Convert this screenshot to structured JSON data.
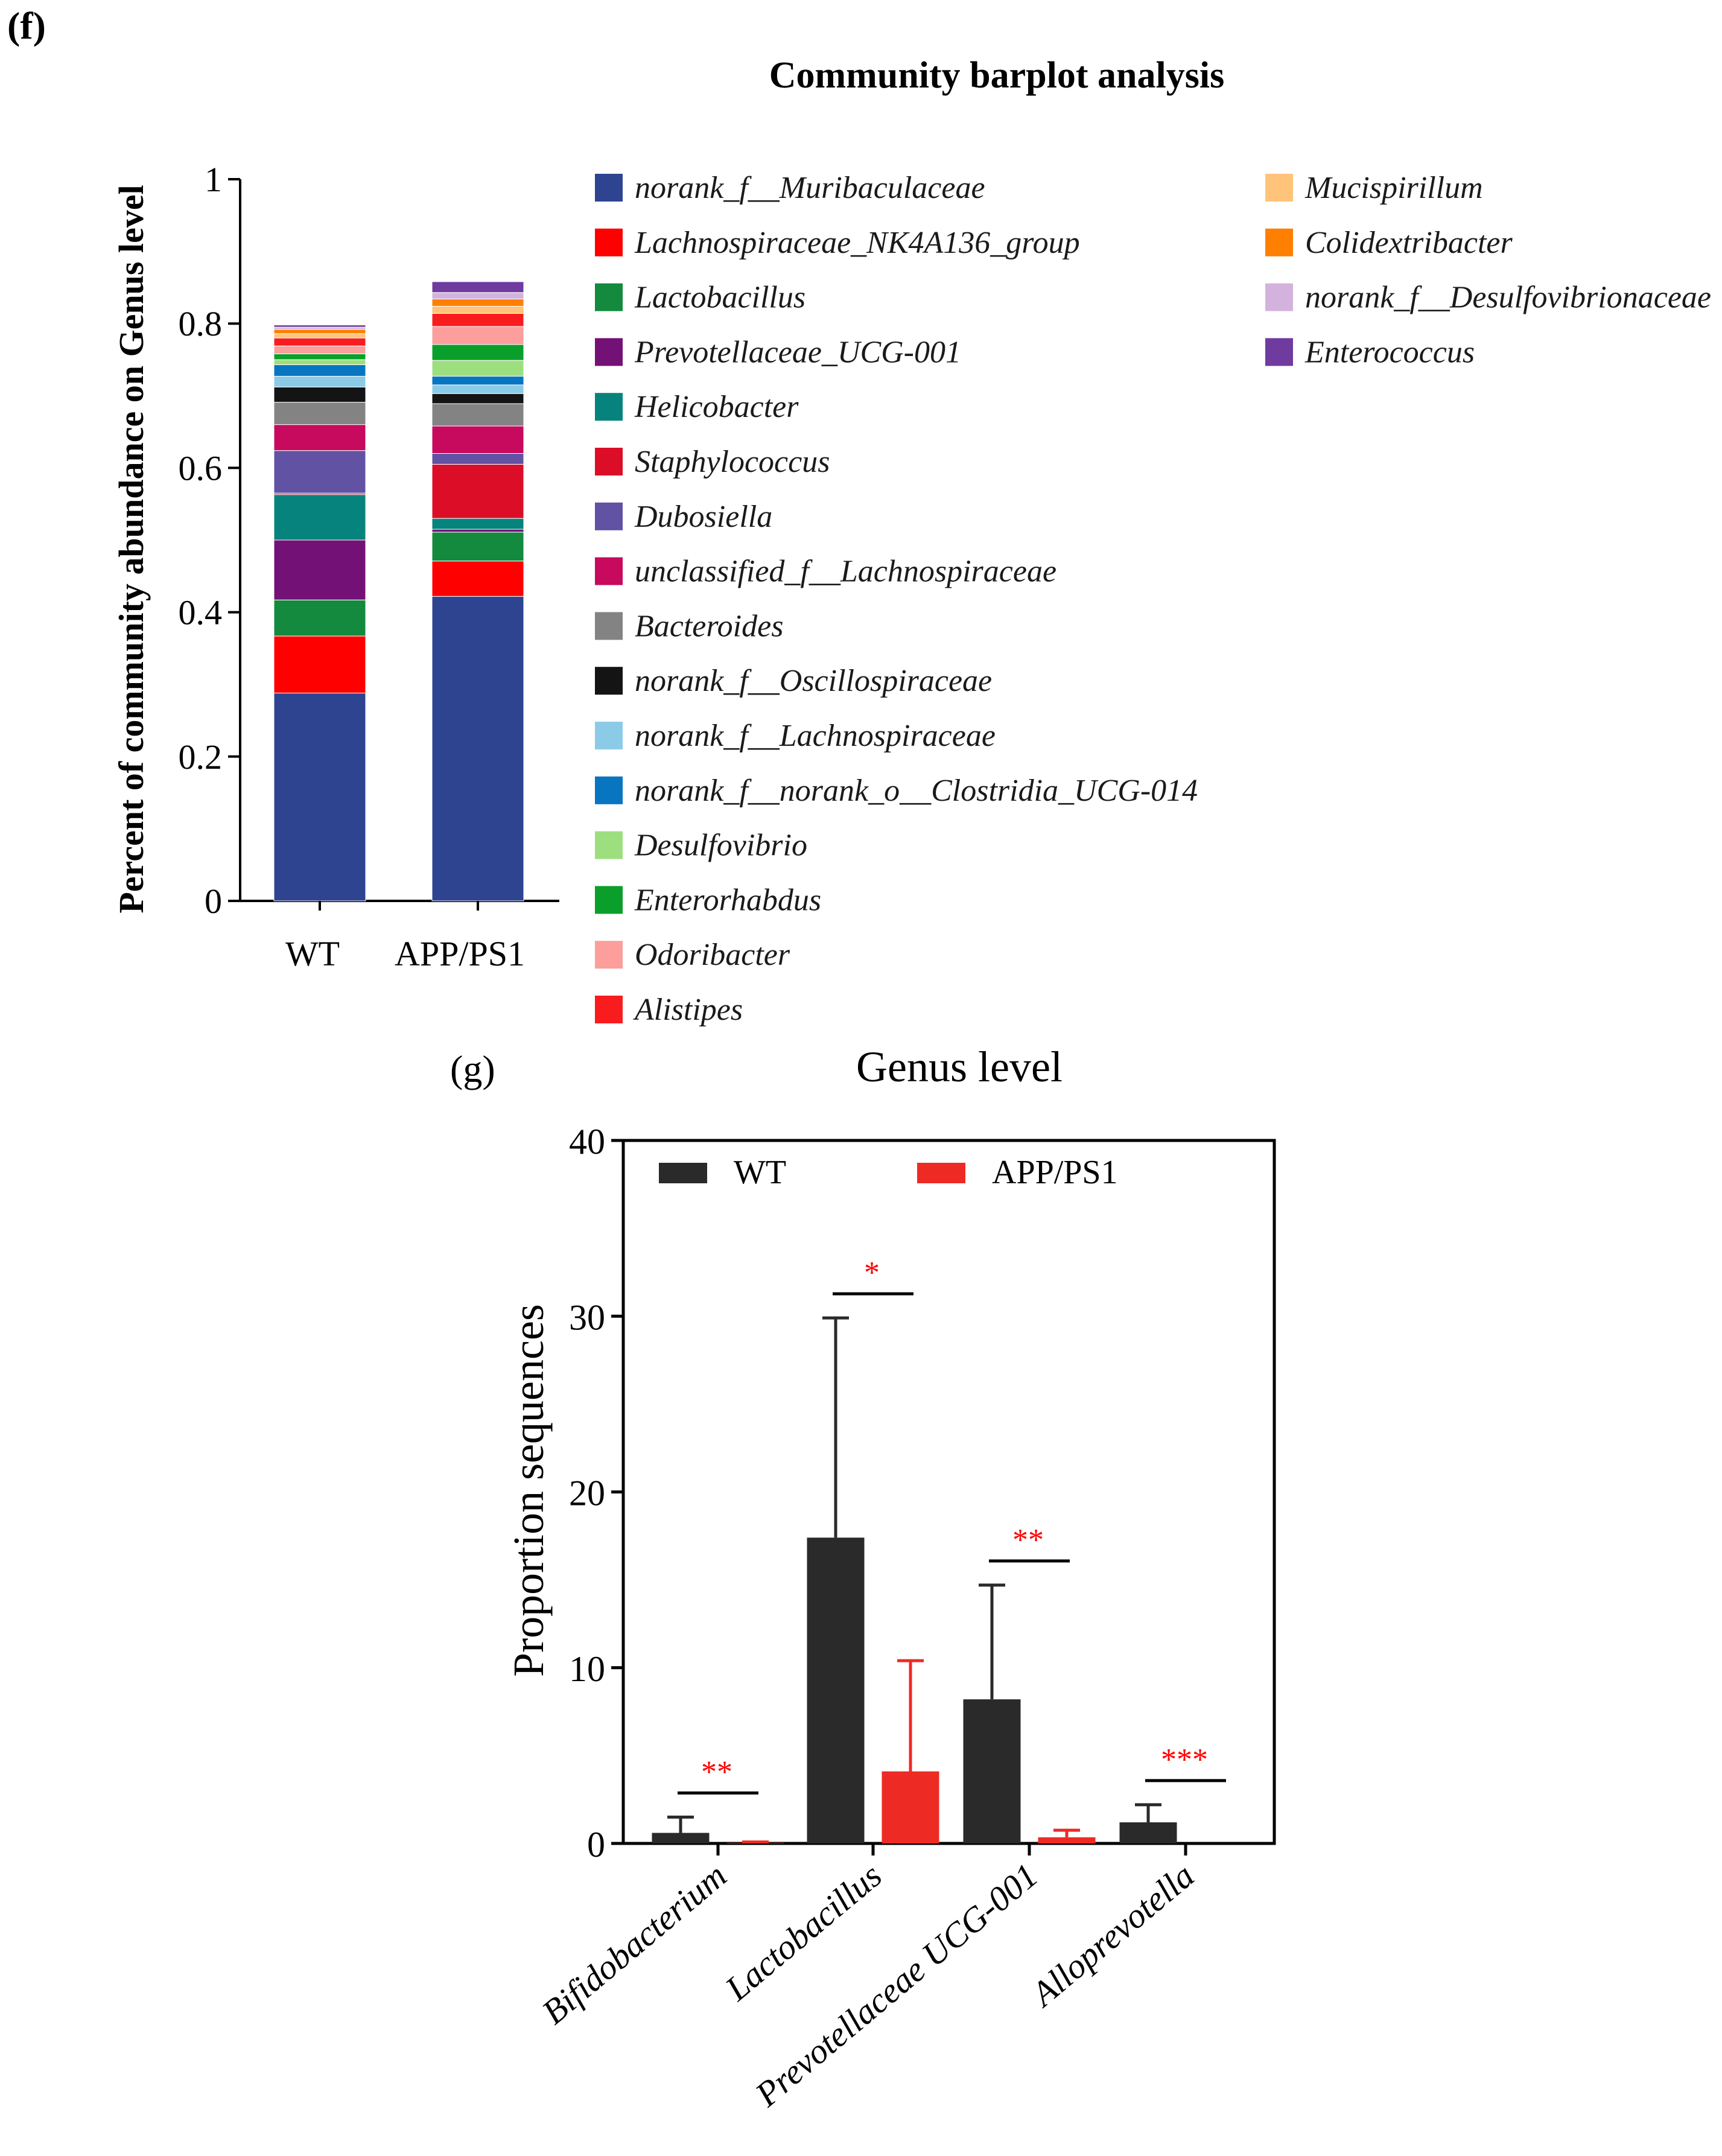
{
  "chart_data": [
    {
      "panel_label": "(f)",
      "type": "bar",
      "stacked": true,
      "title": "Community barplot analysis",
      "xlabel": "",
      "ylabel": "Percent of community abundance on Genus level",
      "ylim": [
        0,
        1
      ],
      "yticks": [
        "0",
        "0.2",
        "0.4",
        "0.6",
        "0.8",
        "1"
      ],
      "categories": [
        "WT",
        "APP/PS1"
      ],
      "series": [
        {
          "name": "norank_f__Muribaculaceae",
          "color": "#2e4491",
          "values": [
            0.288,
            0.422
          ]
        },
        {
          "name": "Lachnospiraceae_NK4A136_group",
          "color": "#ff0000",
          "values": [
            0.079,
            0.049
          ]
        },
        {
          "name": "Lactobacillus",
          "color": "#138a3e",
          "values": [
            0.05,
            0.04
          ]
        },
        {
          "name": "Prevotellaceae_UCG-001",
          "color": "#741176",
          "values": [
            0.083,
            0.004
          ]
        },
        {
          "name": "Helicobacter",
          "color": "#07837d",
          "values": [
            0.063,
            0.015
          ]
        },
        {
          "name": "Staphylococcus",
          "color": "#dc0e27",
          "values": [
            0.002,
            0.075
          ]
        },
        {
          "name": "Dubosiella",
          "color": "#6152a3",
          "values": [
            0.059,
            0.015
          ]
        },
        {
          "name": "unclassified_f__Lachnospiraceae",
          "color": "#c70a5e",
          "values": [
            0.036,
            0.038
          ]
        },
        {
          "name": "Bacteroides",
          "color": "#838383",
          "values": [
            0.031,
            0.031
          ]
        },
        {
          "name": "norank_f__Oscillospiraceae",
          "color": "#141414",
          "values": [
            0.021,
            0.014
          ]
        },
        {
          "name": "norank_f__Lachnospiraceae",
          "color": "#8ccbe8",
          "values": [
            0.015,
            0.012
          ]
        },
        {
          "name": "norank_f__norank_o__Clostridia_UCG-014",
          "color": "#0875c1",
          "values": [
            0.016,
            0.012
          ]
        },
        {
          "name": "Desulfovibrio",
          "color": "#9ddf7f",
          "values": [
            0.007,
            0.022
          ]
        },
        {
          "name": "Enterorhabdus",
          "color": "#0a9f2a",
          "values": [
            0.008,
            0.022
          ]
        },
        {
          "name": "Odoribacter",
          "color": "#fc9e9c",
          "values": [
            0.011,
            0.025
          ]
        },
        {
          "name": "Alistipes",
          "color": "#f81c1e",
          "values": [
            0.011,
            0.018
          ]
        },
        {
          "name": "Mucispirillum",
          "color": "#ffc479",
          "values": [
            0.006,
            0.01
          ]
        },
        {
          "name": "Colidextribacter",
          "color": "#ff7f00",
          "values": [
            0.006,
            0.01
          ]
        },
        {
          "name": "norank_f__Desulfovibrionaceae",
          "color": "#d3b3de",
          "values": [
            0.003,
            0.009
          ]
        },
        {
          "name": "Enterococcus",
          "color": "#6f3b9e",
          "values": [
            0.003,
            0.015
          ]
        }
      ]
    },
    {
      "panel_label": "(g)",
      "type": "bar",
      "title": "Genus level",
      "xlabel": "",
      "ylabel": "Proportion sequences",
      "ylim": [
        0,
        40
      ],
      "yticks": [
        "0",
        "10",
        "20",
        "30",
        "40"
      ],
      "categories": [
        "Bifidobacterium",
        "Lactobacillus",
        "Prevotellaceae UCG-001",
        "Alloprevotella"
      ],
      "legend_position": "top",
      "series": [
        {
          "name": "WT",
          "color": "#2a2a2a",
          "values": [
            0.6,
            17.4,
            8.2,
            1.2
          ],
          "errors": [
            0.9,
            12.5,
            6.5,
            1.0
          ]
        },
        {
          "name": "APP/PS1",
          "color": "#ee2a24",
          "values": [
            0.03,
            4.1,
            0.35,
            0.0
          ],
          "errors": [
            0.05,
            6.3,
            0.4,
            0.0
          ]
        }
      ],
      "significance": [
        "**",
        "*",
        "**",
        "***"
      ],
      "significance_color": "#ff0000"
    }
  ]
}
